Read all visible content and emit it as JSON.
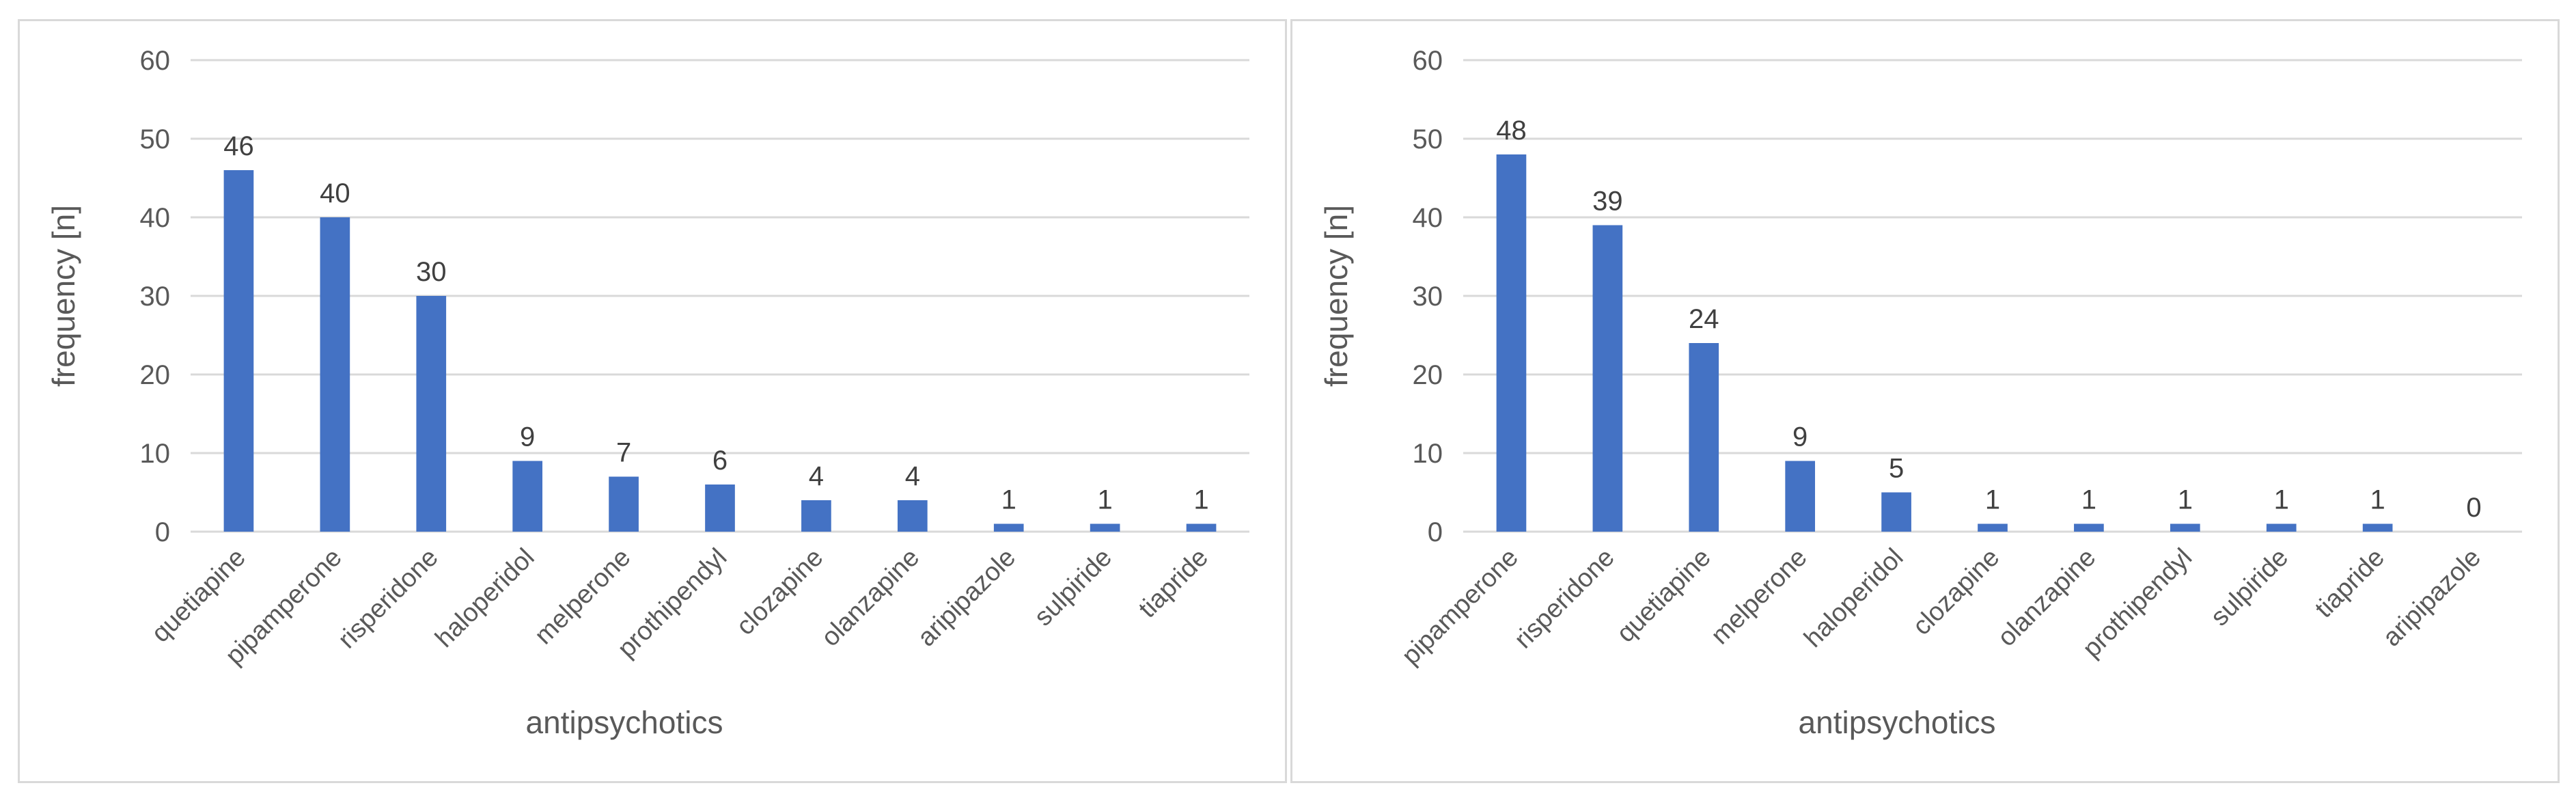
{
  "chart_data": [
    {
      "type": "bar",
      "categories": [
        "quetiapine",
        "pipamperone",
        "risperidone",
        "haloperidol",
        "melperone",
        "prothipendyl",
        "clozapine",
        "olanzapine",
        "aripipazole",
        "sulpiride",
        "tiapride"
      ],
      "values": [
        46,
        40,
        30,
        9,
        7,
        6,
        4,
        4,
        1,
        1,
        1
      ],
      "xlabel": "antipsychotics",
      "ylabel": "frequency [n]",
      "ylim": [
        0,
        60
      ],
      "yticks": [
        0,
        10,
        20,
        30,
        40,
        50,
        60
      ],
      "grid": true,
      "bar_color": "#4472c4"
    },
    {
      "type": "bar",
      "categories": [
        "pipamperone",
        "risperidone",
        "quetiapine",
        "melperone",
        "haloperidol",
        "clozapine",
        "olanzapine",
        "prothipendyl",
        "sulpiride",
        "tiapride",
        "aripipazole"
      ],
      "values": [
        48,
        39,
        24,
        9,
        5,
        1,
        1,
        1,
        1,
        1,
        0
      ],
      "xlabel": "antipsychotics",
      "ylabel": "frequency [n]",
      "ylim": [
        0,
        60
      ],
      "yticks": [
        0,
        10,
        20,
        30,
        40,
        50,
        60
      ],
      "grid": true,
      "bar_color": "#4472c4"
    }
  ]
}
